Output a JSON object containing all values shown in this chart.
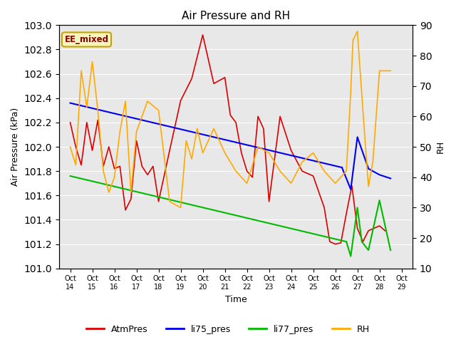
{
  "title": "Air Pressure and RH",
  "xlabel": "Time",
  "ylabel_left": "Air Pressure (kPa)",
  "ylabel_right": "RH",
  "annotation": "EE_mixed",
  "ylim_left": [
    101.0,
    103.0
  ],
  "ylim_right": [
    10,
    90
  ],
  "yticks_left": [
    101.0,
    101.2,
    101.4,
    101.6,
    101.8,
    102.0,
    102.2,
    102.4,
    102.6,
    102.8,
    103.0
  ],
  "yticks_right": [
    10,
    20,
    30,
    40,
    50,
    60,
    70,
    80,
    90
  ],
  "x_tick_positions": [
    0,
    1,
    2,
    3,
    4,
    5,
    6,
    7,
    8,
    9,
    10,
    11,
    12,
    13,
    14,
    15
  ],
  "x_labels": [
    "Oct\n14",
    "Oct\n15",
    "Oct\n16",
    "Oct\n17",
    "Oct\n18",
    "Oct\n19",
    "Oct\n20",
    "Oct\n21",
    "Oct\n22",
    "Oct\n23",
    "Oct\n24",
    "Oct\n25",
    "Oct\n26",
    "Oct\n27",
    "Oct\n28",
    "Oct\n29"
  ],
  "bg_color": "#e8e8e8",
  "atm_color": "#dd0000",
  "li75_color": "#0000ee",
  "li77_color": "#00bb00",
  "rh_color": "#ffaa00",
  "legend_labels": [
    "AtmPres",
    "li75_pres",
    "li77_pres",
    "RH"
  ],
  "atm_x": [
    0,
    0.25,
    0.5,
    0.75,
    1.0,
    1.25,
    1.5,
    1.75,
    2.0,
    2.25,
    2.5,
    2.75,
    3.0,
    3.25,
    3.5,
    3.75,
    4.0,
    4.5,
    5.0,
    5.5,
    6.0,
    6.5,
    7.0,
    7.25,
    7.5,
    7.75,
    8.0,
    8.25,
    8.5,
    8.75,
    9.0,
    9.5,
    10.0,
    10.5,
    11.0,
    11.5,
    11.75,
    12.0,
    12.25,
    12.5,
    12.75,
    13.0,
    13.25,
    13.5,
    13.75,
    14.0,
    14.25
  ],
  "atm_y": [
    102.2,
    102.0,
    101.85,
    102.2,
    101.97,
    102.22,
    101.84,
    102.0,
    101.82,
    101.84,
    101.48,
    101.57,
    102.05,
    101.84,
    101.77,
    101.84,
    101.55,
    101.97,
    102.38,
    102.56,
    102.92,
    102.52,
    102.57,
    102.26,
    102.2,
    101.95,
    101.8,
    101.75,
    102.25,
    102.15,
    101.55,
    102.25,
    101.97,
    101.8,
    101.76,
    101.5,
    101.22,
    101.2,
    101.21,
    101.45,
    101.68,
    101.33,
    101.22,
    101.31,
    101.33,
    101.35,
    101.31
  ],
  "li75_x": [
    0,
    11.8,
    12.3,
    12.7,
    13.0,
    13.5,
    14.0,
    14.5
  ],
  "li75_y": [
    102.36,
    101.85,
    101.83,
    101.65,
    102.08,
    101.82,
    101.77,
    101.74
  ],
  "li77_x": [
    0,
    11.5,
    12.0,
    12.5,
    12.7,
    13.0,
    13.2,
    13.5,
    14.0,
    14.5
  ],
  "li77_y": [
    101.76,
    101.23,
    101.22,
    101.22,
    101.1,
    101.5,
    101.22,
    101.15,
    101.56,
    101.15
  ],
  "rh_x": [
    0,
    0.25,
    0.5,
    0.75,
    1.0,
    1.25,
    1.5,
    1.75,
    2.0,
    2.25,
    2.5,
    2.75,
    3.0,
    3.5,
    4.0,
    4.5,
    5.0,
    5.25,
    5.5,
    5.75,
    6.0,
    6.5,
    7.0,
    7.5,
    8.0,
    8.5,
    9.0,
    9.5,
    10.0,
    10.5,
    11.0,
    11.5,
    12.0,
    12.5,
    12.6,
    12.7,
    12.8,
    13.0,
    13.25,
    13.5,
    13.7,
    14.0,
    14.5
  ],
  "rh_y": [
    50,
    44,
    75,
    63,
    78,
    62,
    42,
    35,
    40,
    55,
    65,
    35,
    55,
    65,
    62,
    32,
    30,
    52,
    46,
    56,
    48,
    56,
    48,
    42,
    38,
    50,
    48,
    42,
    38,
    45,
    48,
    42,
    38,
    42,
    55,
    68,
    85,
    88,
    62,
    37,
    45,
    75,
    75
  ]
}
